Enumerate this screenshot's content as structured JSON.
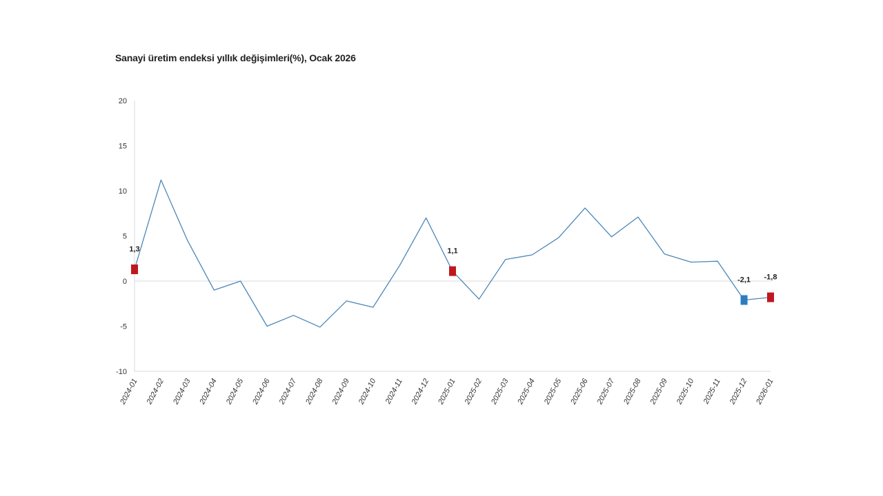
{
  "chart_data": {
    "type": "line",
    "title": "Sanayi üretim endeksi yıllık değişimleri(%), Ocak 2026",
    "xlabel": "",
    "ylabel": "",
    "ylim": [
      -10,
      20
    ],
    "yticks": [
      -10,
      -5,
      0,
      5,
      10,
      15,
      20
    ],
    "yticks_text": [
      "-10",
      "-5",
      "0",
      "5",
      "10",
      "15",
      "20"
    ],
    "grid": false,
    "categories": [
      "2024-01",
      "2024-02",
      "2024-03",
      "2024-04",
      "2024-05",
      "2024-06",
      "2024-07",
      "2024-08",
      "2024-09",
      "2024-10",
      "2024-11",
      "2024-12",
      "2025-01",
      "2025-02",
      "2025-03",
      "2025-04",
      "2025-05",
      "2025-06",
      "2025-07",
      "2025-08",
      "2025-09",
      "2025-10",
      "2025-11",
      "2025-12",
      "2026-01"
    ],
    "series": [
      {
        "values": [
          1.3,
          11.2,
          4.5,
          -1.0,
          0.0,
          -5.0,
          -3.8,
          -5.1,
          -2.2,
          -2.9,
          1.7,
          7.0,
          1.1,
          -2.0,
          2.4,
          2.9,
          4.8,
          8.1,
          4.9,
          7.1,
          3.0,
          2.1,
          2.2,
          -2.1,
          -1.8
        ],
        "color": "#4a86b8"
      }
    ],
    "highlights": [
      {
        "index": 0,
        "label": "1,3",
        "color": "#c0171f"
      },
      {
        "index": 12,
        "label": "1,1",
        "color": "#c0171f"
      },
      {
        "index": 23,
        "label": "-2,1",
        "color": "#2e7cbf"
      },
      {
        "index": 24,
        "label": "-1,8",
        "color": "#c0171f"
      }
    ],
    "zero_line_color": "#d9d9d9",
    "axis_color": "#d9d9d9"
  }
}
